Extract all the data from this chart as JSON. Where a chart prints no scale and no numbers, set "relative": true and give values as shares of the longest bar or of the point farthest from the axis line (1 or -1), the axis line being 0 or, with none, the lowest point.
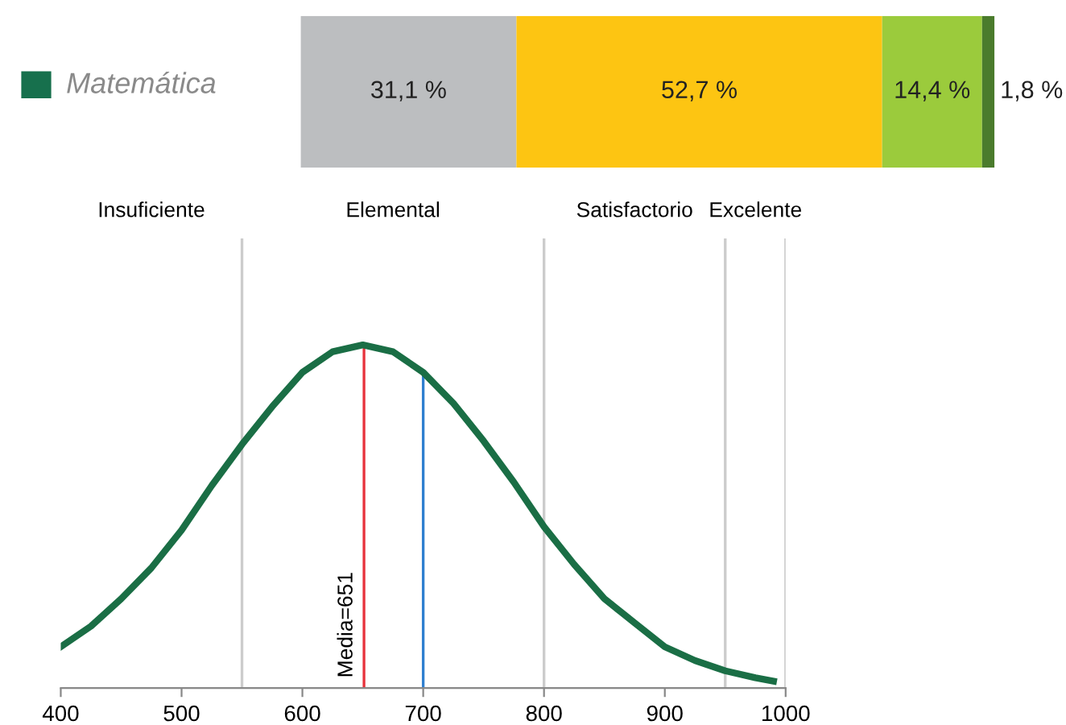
{
  "chart_data": [
    {
      "type": "bar",
      "orientation": "horizontal",
      "stacked": true,
      "categories": [
        "Matemática"
      ],
      "series": [
        {
          "color": "#bcbec0",
          "values": [
            31.1
          ],
          "value_labels": [
            "31,1 %"
          ]
        },
        {
          "color": "#fdc512",
          "values": [
            52.7
          ],
          "value_labels": [
            "52,7 %"
          ]
        },
        {
          "color": "#9bcb3c",
          "values": [
            14.4
          ],
          "value_labels": [
            "14,4 %"
          ]
        },
        {
          "color": "#4a7b2c",
          "values": [
            1.8
          ],
          "value_labels": [
            "1,8 %"
          ]
        }
      ]
    },
    {
      "type": "line",
      "relative": true,
      "xlim": [
        400,
        1000
      ],
      "xticks": [
        400,
        500,
        600,
        700,
        800,
        900,
        1000
      ],
      "grid": false,
      "legend": false,
      "marker": "none",
      "line_style": "solid",
      "series": [
        {
          "color": "#1a6e45",
          "x": [
            400,
            425,
            450,
            475,
            500,
            525,
            550,
            575,
            600,
            625,
            650,
            675,
            700,
            725,
            750,
            775,
            800,
            825,
            850,
            875,
            900,
            925,
            950,
            975,
            990
          ],
          "values": [
            0.12,
            0.18,
            0.26,
            0.35,
            0.46,
            0.59,
            0.71,
            0.82,
            0.92,
            0.98,
            1.0,
            0.98,
            0.92,
            0.83,
            0.72,
            0.6,
            0.47,
            0.36,
            0.26,
            0.19,
            0.12,
            0.08,
            0.05,
            0.03,
            0.02
          ]
        }
      ],
      "ref_lines": [
        {
          "axis": "x",
          "value": 550,
          "color": "#cccccc"
        },
        {
          "axis": "x",
          "value": 651,
          "color": "#e8323c",
          "label": "Media=651"
        },
        {
          "axis": "x",
          "value": 700,
          "color": "#2f7fd0"
        },
        {
          "axis": "x",
          "value": 800,
          "color": "#cccccc"
        },
        {
          "axis": "x",
          "value": 950,
          "color": "#cccccc"
        },
        {
          "axis": "x",
          "value": 1000,
          "color": "#cccccc"
        }
      ],
      "annotations": [
        "Insuficiente",
        "Elemental",
        "Satisfactorio",
        "Excelente"
      ]
    }
  ]
}
